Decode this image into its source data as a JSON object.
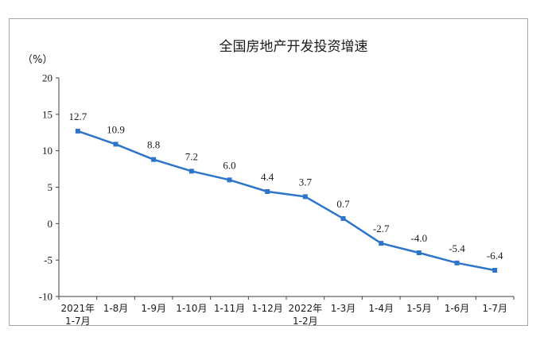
{
  "chart_data": {
    "type": "line",
    "title": "全国房地产开发投资增速",
    "ylabel": "（%）",
    "ylim": [
      -10,
      20
    ],
    "yticks": [
      20,
      15,
      10,
      5,
      0,
      -5,
      -10
    ],
    "grid": false,
    "categories": [
      {
        "line1": "2021年",
        "line2": "1-7月"
      },
      {
        "line1": "1-8月",
        "line2": ""
      },
      {
        "line1": "1-9月",
        "line2": ""
      },
      {
        "line1": "1-10月",
        "line2": ""
      },
      {
        "line1": "1-11月",
        "line2": ""
      },
      {
        "line1": "1-12月",
        "line2": ""
      },
      {
        "line1": "2022年",
        "line2": "1-2月"
      },
      {
        "line1": "1-3月",
        "line2": ""
      },
      {
        "line1": "1-4月",
        "line2": ""
      },
      {
        "line1": "1-5月",
        "line2": ""
      },
      {
        "line1": "1-6月",
        "line2": ""
      },
      {
        "line1": "1-7月",
        "line2": ""
      }
    ],
    "series": [
      {
        "values": [
          12.7,
          10.9,
          8.8,
          7.2,
          6.0,
          4.4,
          3.7,
          0.7,
          -2.7,
          -4.0,
          -5.4,
          -6.4
        ],
        "labels": [
          "12.7",
          "10.9",
          "8.8",
          "7.2",
          "6.0",
          "4.4",
          "3.7",
          "0.7",
          "-2.7",
          "-4.0",
          "-5.4",
          "-6.4"
        ],
        "color": "#2e75c9"
      }
    ]
  }
}
